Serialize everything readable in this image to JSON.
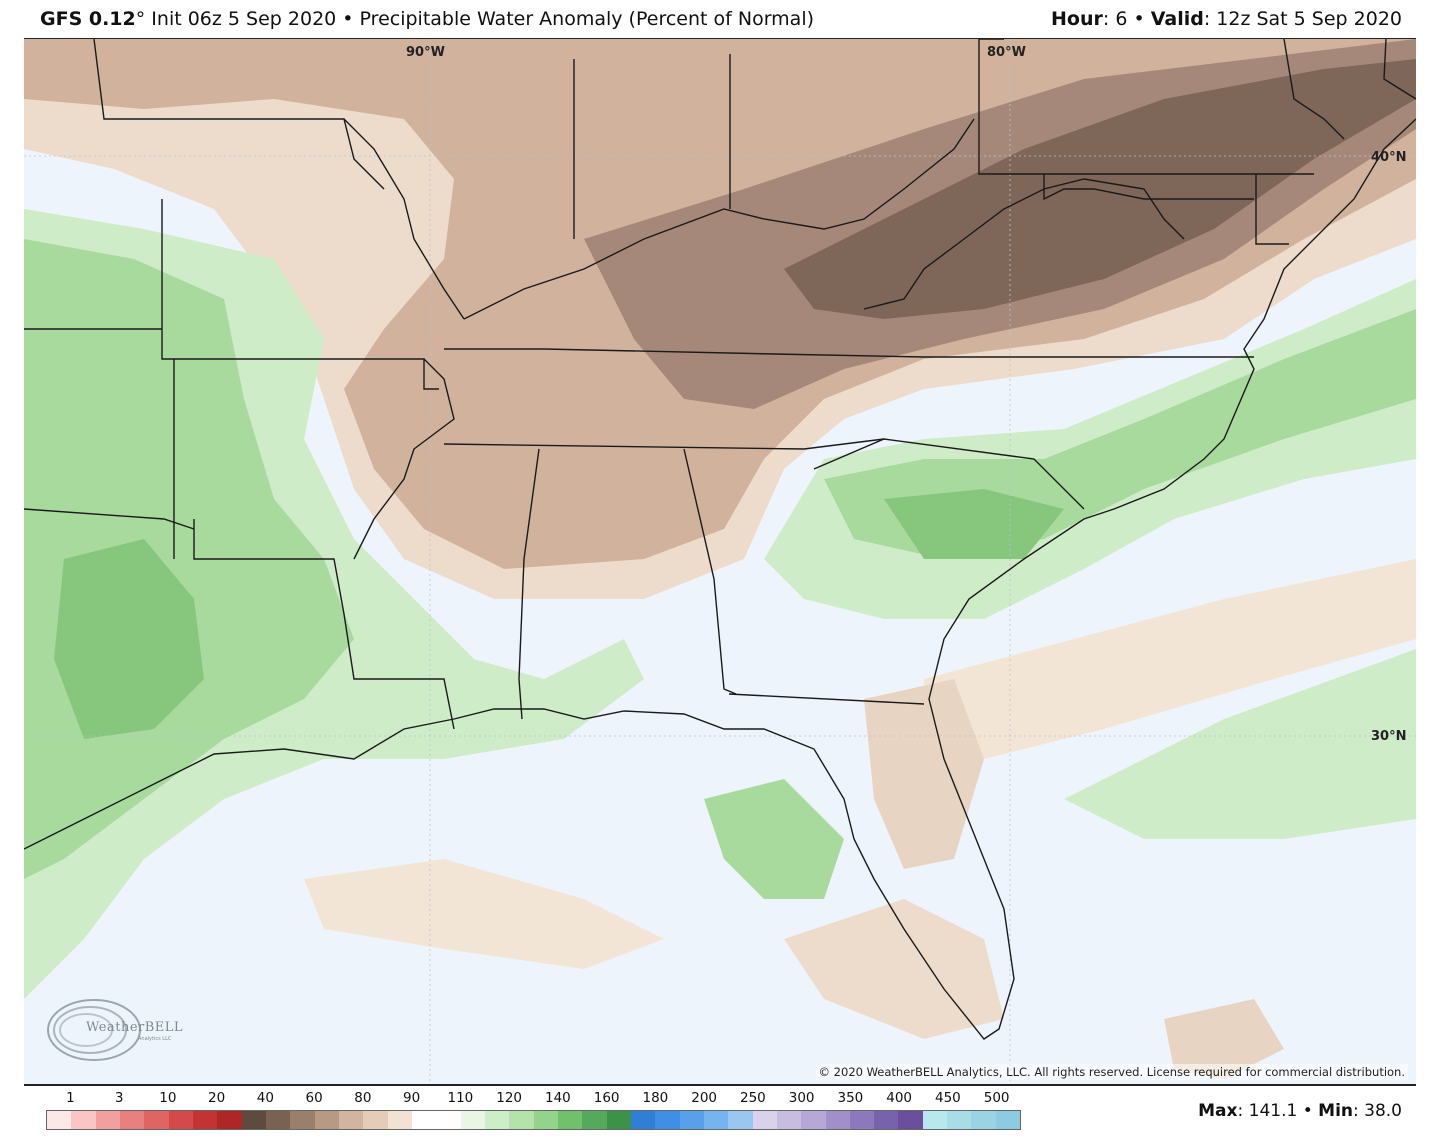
{
  "header": {
    "model": "GFS 0.12",
    "degree": "°",
    "init": " Init 06z 5 Sep 2020",
    "sep": " • ",
    "product": "Precipitable Water Anomaly (Percent of Normal)",
    "hour_label": "Hour",
    "hour_value": ": 6",
    "valid_label": "Valid",
    "valid_value": ": 12z Sat 5 Sep 2020"
  },
  "grid_labels": {
    "lon_90": "90°W",
    "lon_80": "80°W",
    "lat_40": "40°N",
    "lat_30": "30°N"
  },
  "logo": {
    "name": "WeatherBELL",
    "sub": "Analytics LLC"
  },
  "copyright": "© 2020 WeatherBELL Analytics, LLC. All rights reserved. License required for commercial distribution.",
  "legend": {
    "ticks": [
      "1",
      "3",
      "10",
      "20",
      "40",
      "60",
      "80",
      "90",
      "110",
      "120",
      "140",
      "160",
      "180",
      "200",
      "250",
      "300",
      "350",
      "400",
      "450",
      "500"
    ],
    "colors": [
      "#fde8e8",
      "#f9c5c5",
      "#f1a0a0",
      "#e88080",
      "#df6464",
      "#d44a4a",
      "#c23434",
      "#b02626",
      "#5e4a3e",
      "#7a6252",
      "#9a7f6c",
      "#b89a84",
      "#d2b4a0",
      "#e4ccb8",
      "#f3e2d2",
      "#ffffff",
      "#ffffff",
      "#e9f6e6",
      "#cdeec6",
      "#b3e2ab",
      "#94d38b",
      "#71c06b",
      "#56a85a",
      "#3d9249",
      "#2f7fd6",
      "#3f8fe6",
      "#58a0ec",
      "#76b4ef",
      "#98c7f2",
      "#d9d2ea",
      "#c8bde0",
      "#b7a7d6",
      "#a28fca",
      "#8d78be",
      "#7862ae",
      "#6a4f9c",
      "#b6e8ee",
      "#a8dde8",
      "#9ad3e4",
      "#8ccbe0"
    ]
  },
  "stats": {
    "max_label": "Max",
    "max_value": ": 141.1",
    "sep": " • ",
    "min_label": "Min",
    "min_value": ": 38.0"
  },
  "colors": {
    "background_sea": "#eef4fc",
    "brown_light": "#eddccb",
    "brown_mid": "#d1b39d",
    "brown_dark": "#a5887a",
    "brown_darkest": "#7e6658",
    "green_light": "#cfecc8",
    "green_mid": "#a8da9e",
    "green_dark": "#86c67d"
  }
}
